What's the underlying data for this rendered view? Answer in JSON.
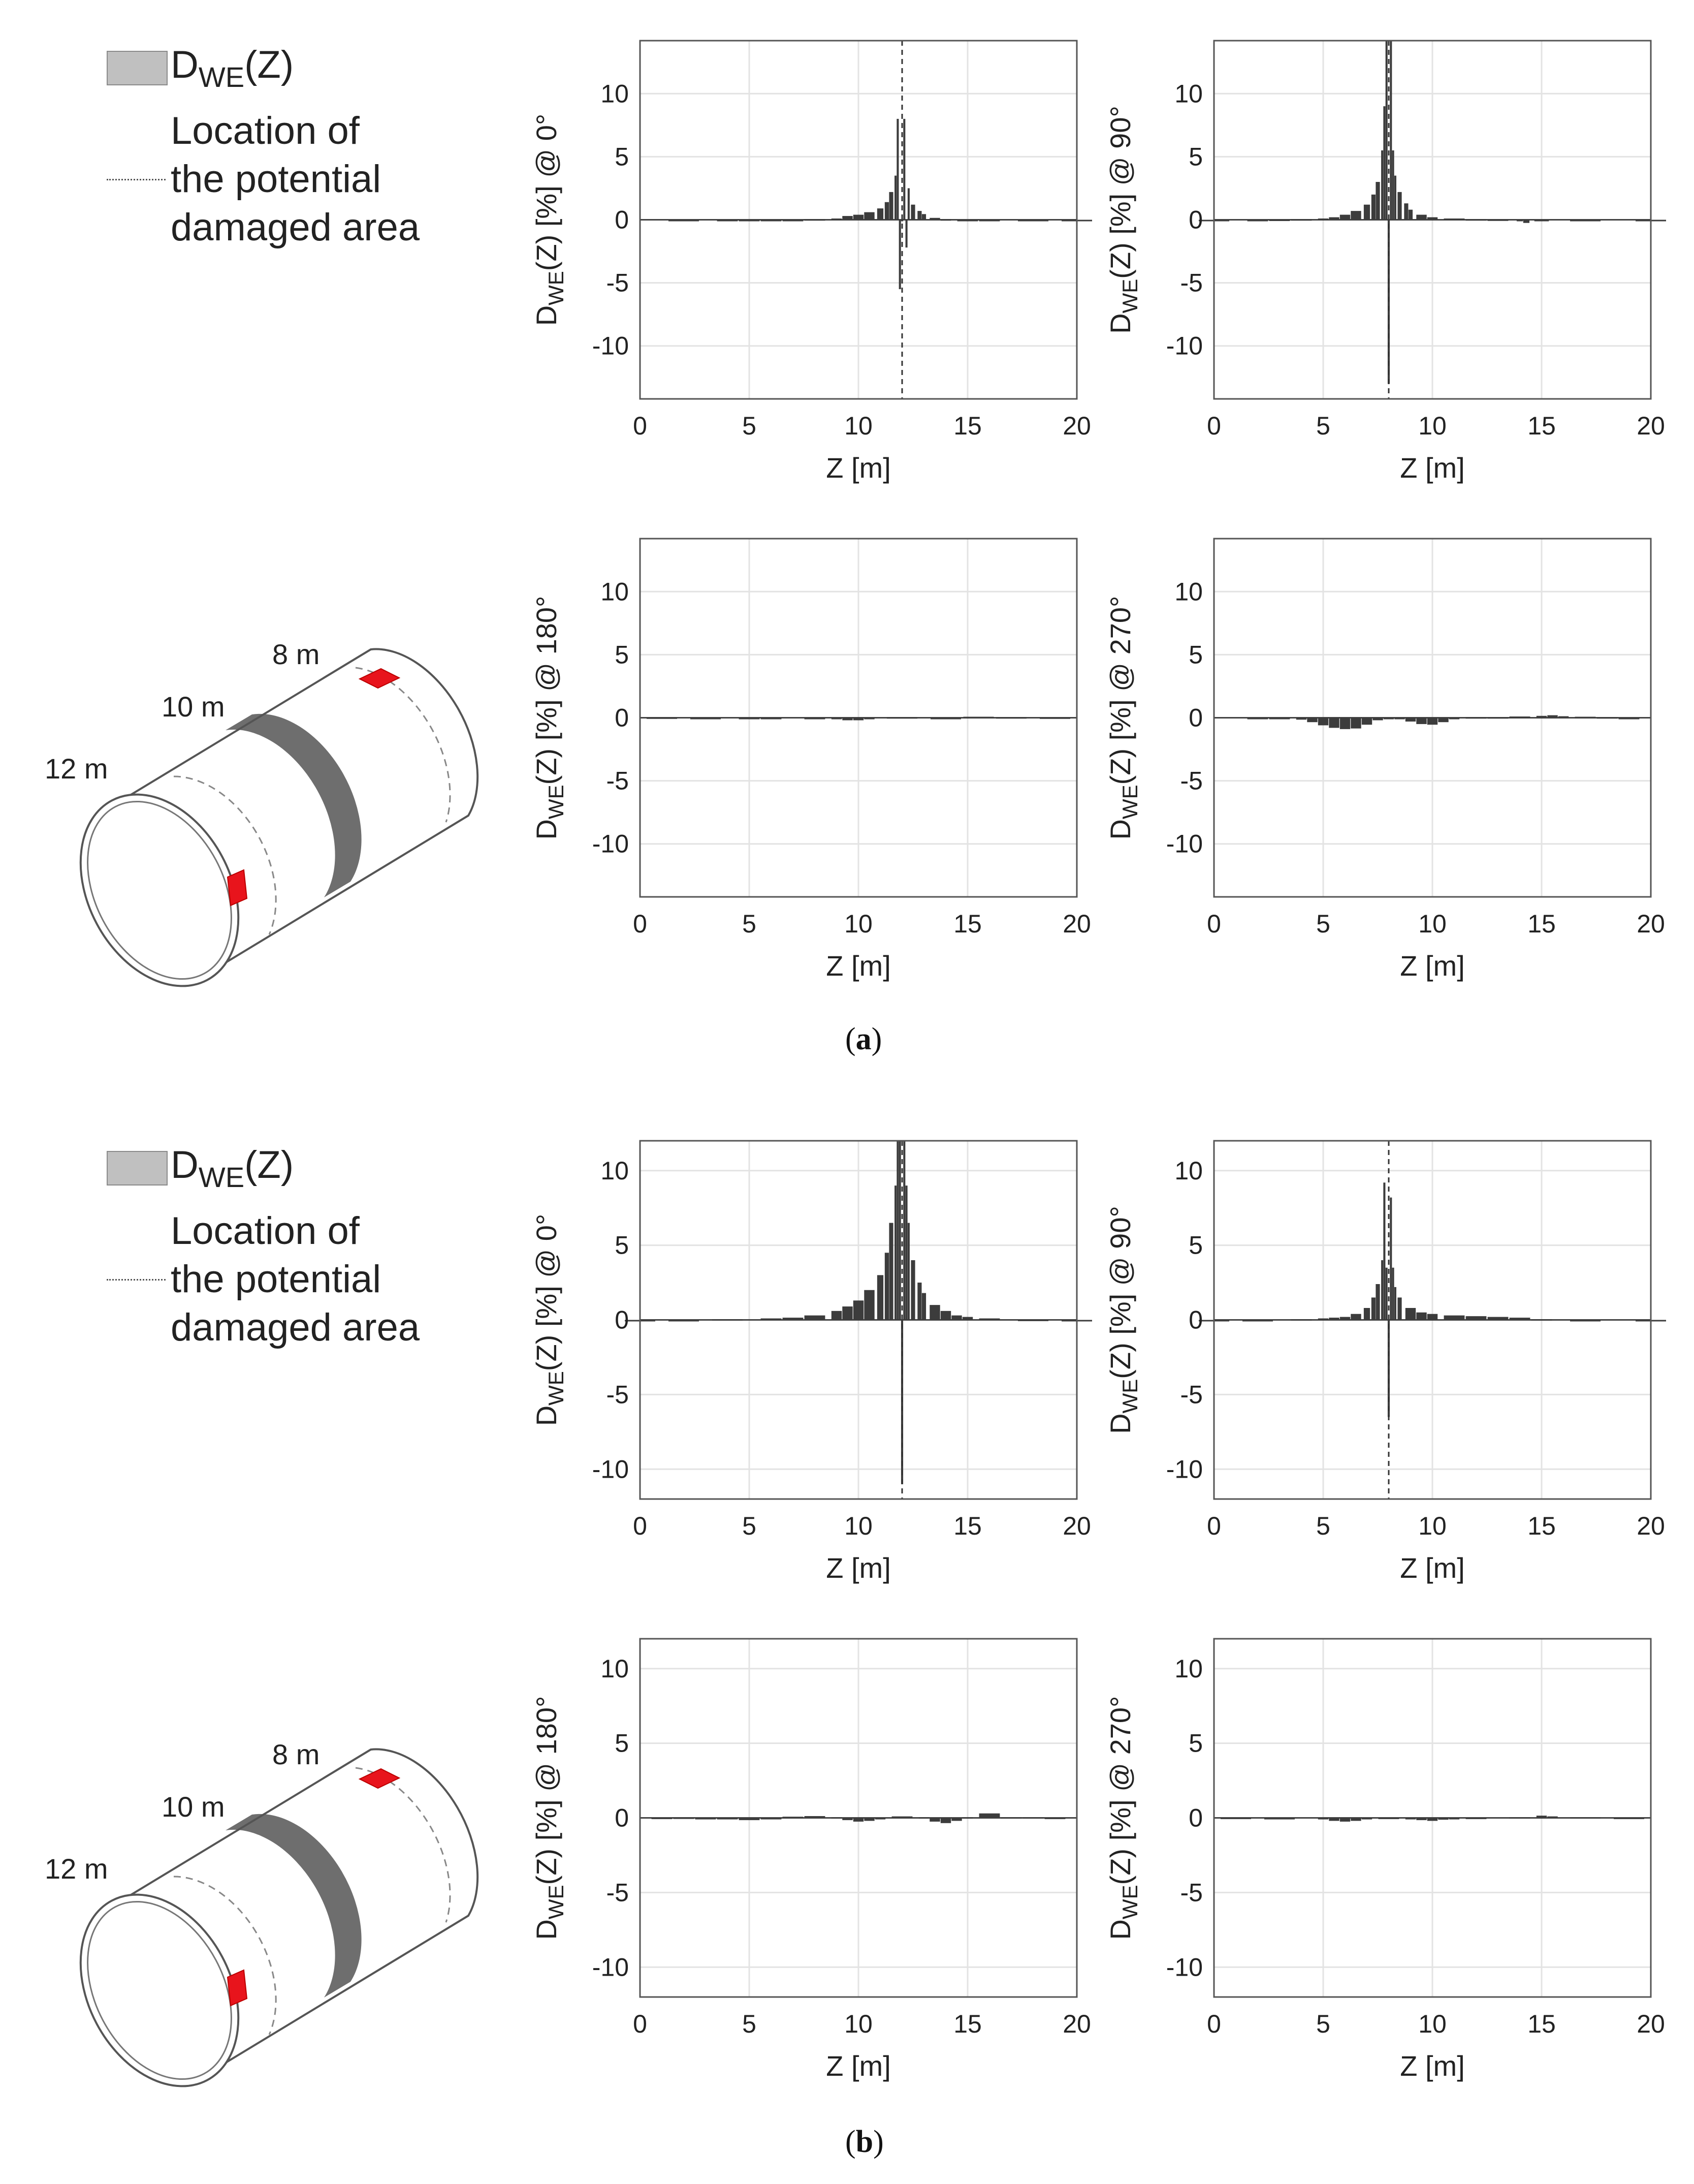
{
  "figure": {
    "panel_a_label": "a",
    "panel_b_label": "b",
    "legend": {
      "series_main": "D",
      "series_sub": "WE",
      "series_tail": "(Z)",
      "line1": "Location of",
      "line2": "the potential",
      "line3": "damaged area"
    },
    "pipe_labels": {
      "near": "12 m",
      "middle": "10 m",
      "far": "8 m"
    },
    "colors": {
      "bars": "#3c3c3c",
      "legend_patch": "#c0c0c0",
      "damage": "#e8141c",
      "grid": "#e3e3e3",
      "axes": "#555555"
    }
  },
  "chart_data": [
    {
      "id": "a-0",
      "panel": "a",
      "type": "bar",
      "title": "",
      "xlabel": "Z [m]",
      "ylabel": "D_WE(Z) [%] @ 0°",
      "xlim": [
        0,
        20
      ],
      "ylim": [
        -14.2,
        14.2
      ],
      "xticks": [
        0,
        5,
        10,
        15,
        20
      ],
      "yticks": [
        -10,
        -5,
        0,
        5,
        10
      ],
      "grid": true,
      "damage_line_z": 12,
      "series": [
        {
          "name": "D_WE(Z)",
          "x": [
            2,
            4,
            5,
            6,
            7,
            8,
            9,
            9.5,
            10,
            10.5,
            11,
            11.3,
            11.5,
            11.7,
            11.8,
            11.9,
            12.0,
            12.1,
            12.2,
            12.3,
            12.5,
            12.8,
            13,
            13.5,
            14,
            15,
            16,
            18,
            20
          ],
          "values": [
            0,
            -0.05,
            -0.1,
            -0.05,
            0,
            0.05,
            0.1,
            0.3,
            0.4,
            0.6,
            0.9,
            1.4,
            2.2,
            3.5,
            8.0,
            -5.5,
            0,
            8.0,
            -2.2,
            2.5,
            1.2,
            0.7,
            0.45,
            0.15,
            0.05,
            0,
            0,
            0,
            0
          ]
        }
      ]
    },
    {
      "id": "a-90",
      "panel": "a",
      "type": "bar",
      "title": "",
      "xlabel": "Z [m]",
      "ylabel": "D_WE(Z) [%] @ 90°",
      "xlim": [
        0,
        20
      ],
      "ylim": [
        -14.2,
        14.2
      ],
      "xticks": [
        0,
        5,
        10,
        15,
        20
      ],
      "yticks": [
        -10,
        -5,
        0,
        5,
        10
      ],
      "grid": true,
      "damage_line_z": 8,
      "series": [
        {
          "name": "D_WE(Z)",
          "x": [
            0,
            2,
            3,
            4,
            5,
            5.5,
            6,
            6.5,
            7,
            7.3,
            7.5,
            7.7,
            7.8,
            7.9,
            8.0,
            8.1,
            8.2,
            8.3,
            8.5,
            8.8,
            9,
            9.5,
            10,
            11,
            12,
            13,
            14,
            14.3,
            15,
            17,
            20
          ],
          "values": [
            0,
            0,
            0.02,
            0.05,
            0.1,
            0.2,
            0.4,
            0.7,
            1.2,
            2.0,
            3.0,
            5.5,
            9.0,
            14.2,
            -13.0,
            14.2,
            5.5,
            3.5,
            2.2,
            1.3,
            0.8,
            0.4,
            0.2,
            0.1,
            0.05,
            0.03,
            0,
            -0.25,
            0,
            0,
            0
          ]
        }
      ]
    },
    {
      "id": "a-180",
      "panel": "a",
      "type": "bar",
      "title": "",
      "xlabel": "Z [m]",
      "ylabel": "D_WE(Z) [%] @ 180°",
      "xlim": [
        0,
        20
      ],
      "ylim": [
        -14.2,
        14.2
      ],
      "xticks": [
        0,
        5,
        10,
        15,
        20
      ],
      "yticks": [
        -10,
        -5,
        0,
        5,
        10
      ],
      "grid": true,
      "damage_line_z": null,
      "series": [
        {
          "name": "D_WE(Z)",
          "x": [
            1,
            3,
            5,
            6,
            8,
            9,
            9.5,
            10,
            10.5,
            12,
            14,
            15.5,
            17,
            19
          ],
          "values": [
            0.03,
            -0.05,
            -0.1,
            -0.05,
            -0.05,
            -0.1,
            -0.2,
            -0.2,
            -0.1,
            0.05,
            -0.08,
            0.08,
            0.05,
            0.03
          ]
        }
      ]
    },
    {
      "id": "a-270",
      "panel": "a",
      "type": "bar",
      "title": "",
      "xlabel": "Z [m]",
      "ylabel": "D_WE(Z) [%] @ 270°",
      "xlim": [
        0,
        20
      ],
      "ylim": [
        -14.2,
        14.2
      ],
      "xticks": [
        0,
        5,
        10,
        15,
        20
      ],
      "yticks": [
        -10,
        -5,
        0,
        5,
        10
      ],
      "grid": true,
      "damage_line_z": null,
      "series": [
        {
          "name": "D_WE(Z)",
          "x": [
            2,
            3,
            4,
            4.5,
            5,
            5.5,
            6,
            6.5,
            7,
            7.5,
            8,
            8.5,
            9,
            9.5,
            10,
            10.5,
            11,
            12,
            13,
            14,
            15,
            15.5,
            16,
            17,
            18,
            19
          ],
          "values": [
            0,
            -0.05,
            -0.15,
            -0.35,
            -0.6,
            -0.8,
            -0.9,
            -0.85,
            -0.55,
            -0.2,
            0,
            -0.1,
            -0.3,
            -0.5,
            -0.55,
            -0.35,
            -0.1,
            0.05,
            0.05,
            0.1,
            0.15,
            0.2,
            0.12,
            0.08,
            0.05,
            0
          ]
        }
      ]
    },
    {
      "id": "b-0",
      "panel": "b",
      "type": "bar",
      "title": "",
      "xlabel": "Z [m]",
      "ylabel": "D_WE(Z) [%] @ 0°",
      "xlim": [
        0,
        20
      ],
      "ylim": [
        -12,
        12
      ],
      "xticks": [
        0,
        5,
        10,
        15,
        20
      ],
      "yticks": [
        -10,
        -5,
        0,
        5,
        10
      ],
      "grid": true,
      "damage_line_z": 12,
      "series": [
        {
          "name": "D_WE(Z)",
          "x": [
            0,
            2,
            4,
            6,
            7,
            8,
            9,
            9.5,
            10,
            10.5,
            11,
            11.3,
            11.5,
            11.7,
            11.8,
            11.9,
            12.0,
            12.1,
            12.2,
            12.3,
            12.5,
            12.8,
            13,
            13.5,
            14,
            14.5,
            15,
            16,
            18,
            20
          ],
          "values": [
            0,
            0,
            0.05,
            0.1,
            0.15,
            0.3,
            0.6,
            0.9,
            1.3,
            2.0,
            3.0,
            4.5,
            6.5,
            9.0,
            12.0,
            12.0,
            -11.0,
            12.0,
            9.0,
            6.5,
            4.0,
            2.5,
            1.8,
            1.0,
            0.6,
            0.3,
            0.2,
            0.1,
            0.02,
            0
          ]
        }
      ]
    },
    {
      "id": "b-90",
      "panel": "b",
      "type": "bar",
      "title": "",
      "xlabel": "Z [m]",
      "ylabel": "D_WE(Z) [%] @ 90°",
      "xlim": [
        0,
        20
      ],
      "ylim": [
        -12,
        12
      ],
      "xticks": [
        0,
        5,
        10,
        15,
        20
      ],
      "yticks": [
        -10,
        -5,
        0,
        5,
        10
      ],
      "grid": true,
      "damage_line_z": 8,
      "series": [
        {
          "name": "D_WE(Z)",
          "x": [
            0,
            2,
            4,
            5,
            5.5,
            6,
            6.5,
            7,
            7.3,
            7.5,
            7.7,
            7.8,
            7.9,
            8.0,
            8.1,
            8.2,
            8.3,
            8.5,
            9,
            9.5,
            10,
            11,
            12,
            13,
            14,
            15,
            17,
            20
          ],
          "values": [
            0,
            0,
            0.05,
            0.1,
            0.15,
            0.2,
            0.4,
            0.8,
            1.5,
            2.4,
            4.0,
            9.2,
            3.5,
            -6.5,
            8.2,
            3.5,
            2.2,
            1.5,
            0.8,
            0.5,
            0.4,
            0.3,
            0.25,
            0.2,
            0.15,
            0.05,
            0,
            0
          ]
        }
      ]
    },
    {
      "id": "b-180",
      "panel": "b",
      "type": "bar",
      "title": "",
      "xlabel": "Z [m]",
      "ylabel": "D_WE(Z) [%] @ 180°",
      "xlim": [
        0,
        20
      ],
      "ylim": [
        -12,
        12
      ],
      "xticks": [
        0,
        5,
        10,
        15,
        20
      ],
      "yticks": [
        -10,
        -5,
        0,
        5,
        10
      ],
      "grid": true,
      "damage_line_z": null,
      "series": [
        {
          "name": "D_WE(Z)",
          "x": [
            1,
            2,
            3,
            4,
            5,
            6,
            7,
            8,
            9,
            9.5,
            10,
            10.5,
            11,
            12,
            13,
            13.5,
            14,
            14.5,
            15,
            16,
            17,
            18,
            19
          ],
          "values": [
            0.02,
            0.03,
            -0.05,
            -0.08,
            -0.15,
            -0.1,
            0.08,
            0.12,
            0.05,
            -0.15,
            -0.25,
            -0.2,
            -0.05,
            0.1,
            0.05,
            -0.25,
            -0.35,
            -0.2,
            0.05,
            0.3,
            0.05,
            0.05,
            0.02
          ]
        }
      ]
    },
    {
      "id": "b-270",
      "panel": "b",
      "type": "bar",
      "title": "",
      "xlabel": "Z [m]",
      "ylabel": "D_WE(Z) [%] @ 270°",
      "xlim": [
        0,
        20
      ],
      "ylim": [
        -12,
        12
      ],
      "xticks": [
        0,
        5,
        10,
        15,
        20
      ],
      "yticks": [
        -10,
        -5,
        0,
        5,
        10
      ],
      "grid": true,
      "damage_line_z": null,
      "series": [
        {
          "name": "D_WE(Z)",
          "x": [
            1,
            3,
            5,
            5.5,
            6,
            6.5,
            7,
            8,
            9,
            9.5,
            10,
            10.5,
            11,
            12,
            14,
            15,
            15.5,
            17,
            19
          ],
          "values": [
            0.02,
            -0.03,
            -0.1,
            -0.2,
            -0.25,
            -0.2,
            -0.08,
            0.02,
            -0.05,
            -0.15,
            -0.2,
            -0.12,
            -0.05,
            0.02,
            0.05,
            0.15,
            0.1,
            0.05,
            0.02
          ]
        }
      ]
    }
  ]
}
